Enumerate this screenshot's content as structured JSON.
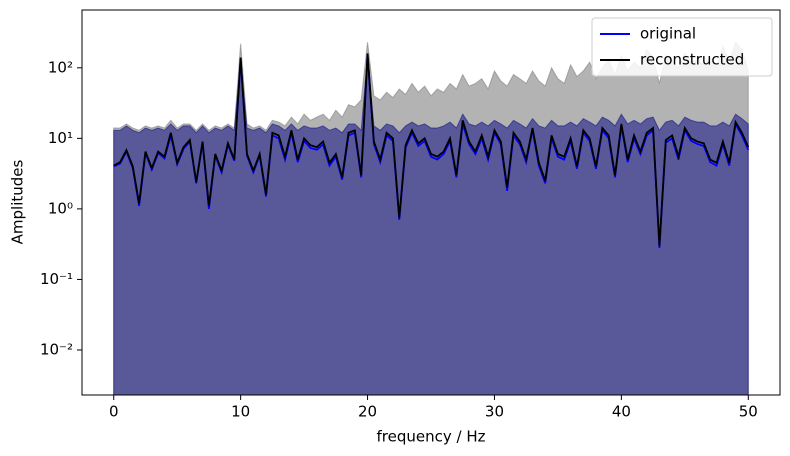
{
  "chart_data": {
    "type": "line",
    "xlabel": "frequency / Hz",
    "ylabel": "Amplitudes",
    "yscale": "log",
    "xlim": [
      -2.5,
      52.5
    ],
    "ylim": [
      0.0023,
      660
    ],
    "xticks": [
      0,
      10,
      20,
      30,
      40,
      50
    ],
    "yticks": [
      {
        "value": 0.01,
        "label": "10⁻²"
      },
      {
        "value": 0.1,
        "label": "10⁻¹"
      },
      {
        "value": 1,
        "label": "10⁰"
      },
      {
        "value": 10,
        "label": "10¹"
      },
      {
        "value": 100,
        "label": "10²"
      }
    ],
    "legend": "upper right",
    "x": [
      0,
      0.5,
      1,
      1.5,
      2,
      2.5,
      3,
      3.5,
      4,
      4.5,
      5,
      5.5,
      6,
      6.5,
      7,
      7.5,
      8,
      8.5,
      9,
      9.5,
      10,
      10.5,
      11,
      11.5,
      12,
      12.5,
      13,
      13.5,
      14,
      14.5,
      15,
      15.5,
      16,
      16.5,
      17,
      17.5,
      18,
      18.5,
      19,
      19.5,
      20,
      20.5,
      21,
      21.5,
      22,
      22.5,
      23,
      23.5,
      24,
      24.5,
      25,
      25.5,
      26,
      26.5,
      27,
      27.5,
      28,
      28.5,
      29,
      29.5,
      30,
      30.5,
      31,
      31.5,
      32,
      32.5,
      33,
      33.5,
      34,
      34.5,
      35,
      35.5,
      36,
      36.5,
      37,
      37.5,
      38,
      38.5,
      39,
      39.5,
      40,
      40.5,
      41,
      41.5,
      42,
      42.5,
      43,
      43.5,
      44,
      44.5,
      45,
      45.5,
      46,
      46.5,
      47,
      47.5,
      48,
      48.5,
      49,
      49.5,
      50
    ],
    "bands": [
      {
        "color": "#808080",
        "opacity": 0.6,
        "upper": [
          14,
          14,
          16,
          14,
          13,
          15,
          14,
          15,
          14,
          18,
          14,
          16,
          16,
          13,
          16,
          13,
          15,
          14,
          16,
          14,
          220,
          16,
          14,
          15,
          13,
          18,
          17,
          15,
          20,
          16,
          22,
          18,
          20,
          22,
          18,
          25,
          20,
          30,
          28,
          35,
          230,
          40,
          35,
          45,
          38,
          50,
          42,
          60,
          45,
          55,
          40,
          50,
          45,
          60,
          50,
          80,
          55,
          60,
          70,
          50,
          90,
          65,
          55,
          80,
          70,
          60,
          90,
          65,
          55,
          100,
          70,
          60,
          110,
          75,
          90,
          120,
          70,
          100,
          130,
          80,
          150,
          90,
          120,
          100,
          180,
          140,
          60,
          150,
          130,
          100,
          160,
          120,
          130,
          110,
          140,
          100,
          200,
          120,
          230,
          180,
          90
        ]
      },
      {
        "color": "#000080",
        "opacity": 0.5,
        "upper": [
          13,
          13,
          15,
          13,
          12,
          14,
          13,
          14,
          13,
          16,
          13,
          15,
          15,
          12,
          15,
          12,
          14,
          13,
          15,
          13,
          130,
          14,
          13,
          14,
          12,
          16,
          15,
          13,
          16,
          13,
          15,
          14,
          14,
          15,
          13,
          14,
          12,
          16,
          16,
          13,
          150,
          15,
          13,
          16,
          15,
          12,
          15,
          17,
          15,
          16,
          14,
          14,
          15,
          17,
          14,
          22,
          16,
          15,
          17,
          15,
          18,
          16,
          14,
          18,
          16,
          14,
          19,
          15,
          14,
          18,
          15,
          15,
          17,
          15,
          19,
          17,
          15,
          20,
          18,
          15,
          22,
          16,
          18,
          16,
          19,
          20,
          13,
          17,
          18,
          15,
          20,
          18,
          17,
          17,
          15,
          15,
          17,
          15,
          22,
          19,
          16
        ]
      }
    ],
    "series": [
      {
        "name": "original",
        "color": "#0000ff",
        "values": [
          4.0,
          4.4,
          6.5,
          3.8,
          1.1,
          6.2,
          3.6,
          6.2,
          5.2,
          11,
          4.3,
          7.1,
          9.0,
          2.3,
          8.6,
          1.0,
          5.7,
          3.3,
          8.1,
          4.8,
          135,
          5.7,
          3.3,
          5.7,
          1.5,
          11,
          10,
          5.0,
          12,
          4.6,
          9.2,
          7.3,
          6.9,
          8.2,
          4.1,
          5.5,
          2.6,
          11,
          12,
          2.8,
          155,
          8.3,
          4.6,
          11,
          9.2,
          0.7,
          7.4,
          12,
          7.8,
          9.2,
          5.5,
          5.0,
          6.0,
          9.2,
          2.8,
          16,
          8.3,
          6.0,
          10,
          5.0,
          12,
          8.3,
          1.8,
          11,
          8.3,
          4.6,
          13,
          4.1,
          2.3,
          10,
          5.5,
          5.0,
          9.2,
          3.7,
          12,
          9.2,
          3.7,
          13,
          10,
          2.8,
          15,
          4.6,
          10,
          6.0,
          11,
          13,
          0.28,
          8.7,
          10,
          5.0,
          13,
          9.2,
          8.3,
          7.8,
          4.6,
          4.1,
          8.3,
          4.1,
          16,
          11,
          6.9
        ]
      },
      {
        "name": "reconstructed",
        "color": "#000000",
        "values": [
          4.1,
          4.6,
          6.8,
          4.0,
          1.2,
          6.5,
          3.8,
          6.5,
          5.5,
          12,
          4.5,
          7.5,
          9.5,
          2.4,
          9.0,
          1.1,
          6.0,
          3.5,
          8.5,
          5.0,
          140,
          6.0,
          3.5,
          6.0,
          1.6,
          12,
          11,
          5.5,
          13,
          5.0,
          10,
          8.0,
          7.5,
          9.0,
          4.5,
          6.0,
          2.8,
          12,
          13,
          3.0,
          160,
          9,
          5.0,
          12,
          10,
          0.75,
          8,
          13,
          8.5,
          10,
          6.0,
          5.5,
          6.5,
          10,
          3.0,
          18,
          9,
          6.5,
          11,
          5.5,
          13,
          9,
          2.0,
          12,
          9,
          5.0,
          14,
          4.5,
          2.5,
          11,
          6.0,
          5.5,
          10,
          4.0,
          13,
          10,
          4.0,
          14,
          11,
          3.0,
          16,
          5.0,
          11,
          6.5,
          12,
          14,
          0.3,
          9.5,
          11,
          5.5,
          14,
          10,
          9,
          8.5,
          5.0,
          4.5,
          9,
          4.5,
          17,
          12,
          7.5
        ]
      }
    ]
  }
}
